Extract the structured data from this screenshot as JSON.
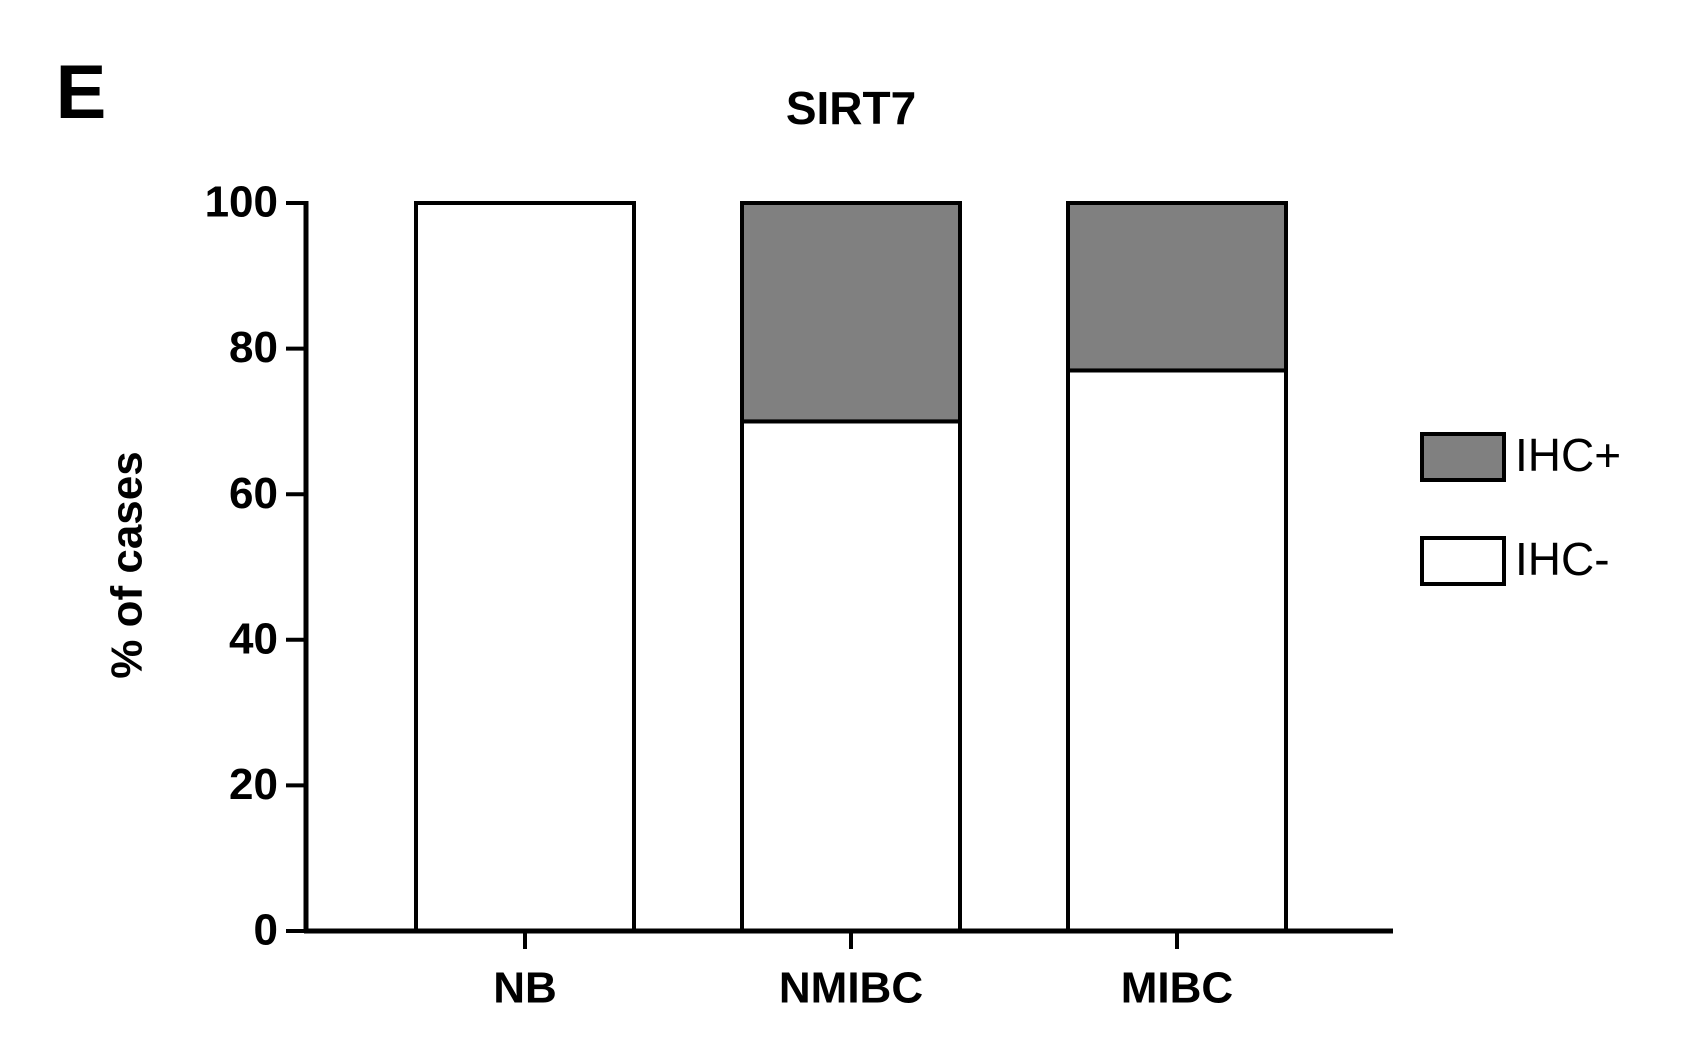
{
  "chart_data": {
    "type": "stacked_bar",
    "panel_label": "E",
    "title": "SIRT7",
    "y_label": "% of cases",
    "categories": [
      "NB",
      "NMIBC",
      "MIBC"
    ],
    "series": [
      {
        "name": "IHC-",
        "color": "#ffffff",
        "values": [
          100,
          70,
          77
        ]
      },
      {
        "name": "IHC+",
        "color": "#808080",
        "values": [
          0,
          30,
          23
        ]
      }
    ],
    "ylim": [
      0,
      100
    ],
    "yticks": [
      0,
      20,
      40,
      60,
      80,
      100
    ],
    "legend": "right"
  }
}
